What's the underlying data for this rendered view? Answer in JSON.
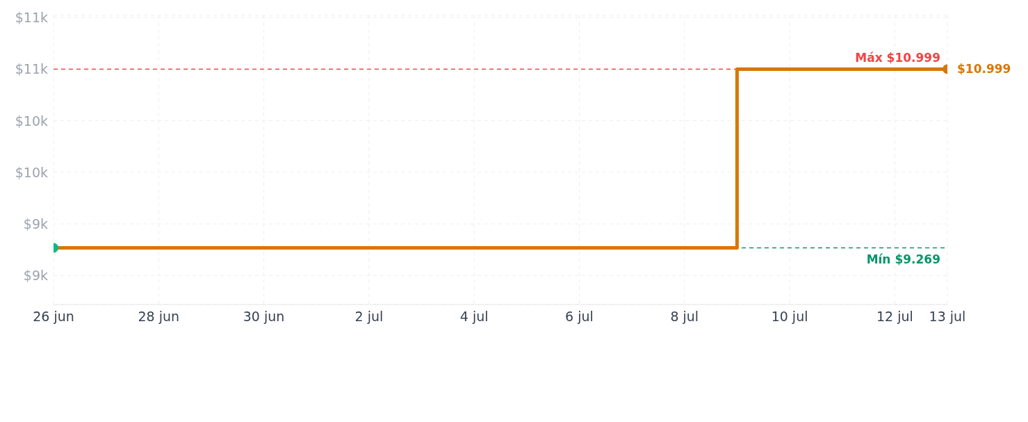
{
  "chart_data": {
    "type": "step",
    "x": [
      "--06-26",
      "--07-09",
      "--07-13"
    ],
    "series": [
      {
        "color": "#d97706",
        "values": [
          9269,
          10999,
          10999
        ],
        "colors": [
          "#10b981",
          null,
          "#d97706"
        ],
        "value_labels": [
          null,
          null,
          "$10.999"
        ]
      }
    ],
    "xlim": [
      "--06-26",
      "--07-13"
    ],
    "xticks": [
      {
        "value": "--06-26",
        "label": "26 jun"
      },
      {
        "value": "--06-28",
        "label": "28 jun"
      },
      {
        "value": "--06-30",
        "label": "30 jun"
      },
      {
        "value": "--07-02",
        "label": "2 jul"
      },
      {
        "value": "--07-04",
        "label": "4 jul"
      },
      {
        "value": "--07-06",
        "label": "6 jul"
      },
      {
        "value": "--07-08",
        "label": "8 jul"
      },
      {
        "value": "--07-10",
        "label": "10 jul"
      },
      {
        "value": "--07-12",
        "label": "12 jul"
      },
      {
        "value": "--07-13",
        "label": "13 jul"
      }
    ],
    "ylim": [
      8720,
      11520
    ],
    "yticks": [
      {
        "value": 9000,
        "label": "$9k"
      },
      {
        "value": 9500,
        "label": "$9k"
      },
      {
        "value": 10000,
        "label": "$10k"
      },
      {
        "value": 10500,
        "label": "$10k"
      },
      {
        "value": 11000,
        "label": "$11k"
      },
      {
        "value": 11500,
        "label": "$11k"
      }
    ],
    "ref_lines": [
      {
        "axis": "y",
        "value": 10999,
        "label": "Máx $10.999",
        "color": "#ef4444",
        "line_style": "dashed"
      },
      {
        "axis": "y",
        "value": 9269,
        "label": "Mín $9.269",
        "color": "#059669",
        "line_style": "dashed"
      }
    ],
    "grid": true,
    "marker": "circle",
    "line_style": "solid",
    "legend": false
  }
}
